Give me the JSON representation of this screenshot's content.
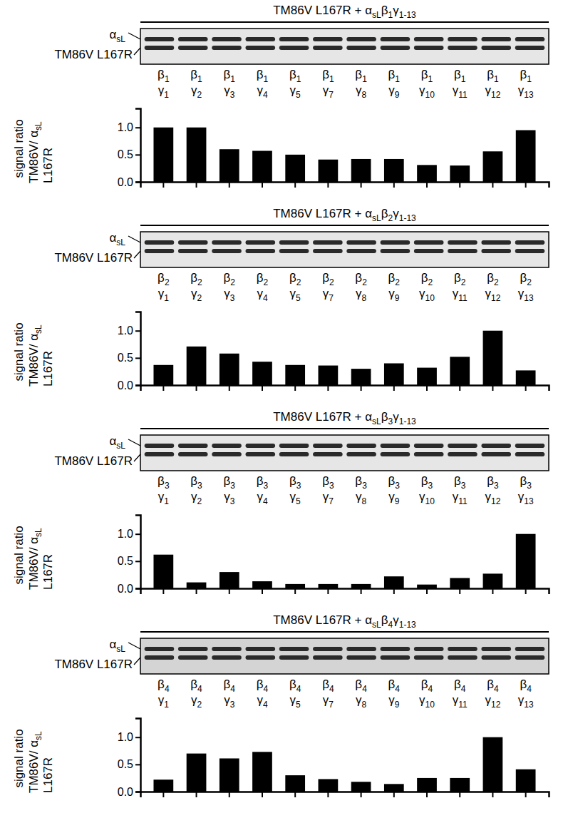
{
  "chart_data": [
    {
      "type": "bar",
      "title": "TM86V L167R + αsLβ1γ1-13",
      "annotations": [
        "αsL",
        "TM86V L167R"
      ],
      "y_label": [
        "signal ratio",
        "TM86V/ αsL",
        "L167R"
      ],
      "categories": [
        "β1 γ1",
        "β1 γ2",
        "β1 γ3",
        "β1 γ4",
        "β1 γ5",
        "β1 γ7",
        "β1 γ8",
        "β1 γ9",
        "β1 γ10",
        "β1 γ11",
        "β1 γ12",
        "β1 γ13"
      ],
      "values": [
        1.0,
        1.0,
        0.6,
        0.57,
        0.5,
        0.41,
        0.42,
        0.42,
        0.31,
        0.3,
        0.56,
        0.95
      ],
      "color": "#000000",
      "ylim": [
        0,
        1.35
      ],
      "yticks": [
        {
          "value": 0,
          "label": "0.0"
        },
        {
          "value": 0.5,
          "label": "0.5"
        },
        {
          "value": 1,
          "label": "1.0"
        }
      ]
    },
    {
      "type": "bar",
      "title": "TM86V L167R + αsLβ2γ1-13",
      "annotations": [
        "αsL",
        "TM86V L167R"
      ],
      "y_label": [
        "signal ratio",
        "TM86V/ αsL",
        "L167R"
      ],
      "categories": [
        "β2 γ1",
        "β2 γ2",
        "β2 γ3",
        "β2 γ4",
        "β2 γ5",
        "β2 γ7",
        "β2 γ8",
        "β2 γ9",
        "β2 γ10",
        "β2 γ11",
        "β2 γ12",
        "β2 γ13"
      ],
      "values": [
        0.37,
        0.71,
        0.58,
        0.43,
        0.37,
        0.36,
        0.3,
        0.4,
        0.32,
        0.52,
        1.0,
        0.27
      ],
      "color": "#000000",
      "ylim": [
        0,
        1.35
      ],
      "yticks": [
        {
          "value": 0,
          "label": "0.0"
        },
        {
          "value": 0.5,
          "label": "0.5"
        },
        {
          "value": 1,
          "label": "1.0"
        }
      ]
    },
    {
      "type": "bar",
      "title": "TM86V L167R + αsLβ3γ1-13",
      "annotations": [
        "αsL",
        "TM86V L167R"
      ],
      "y_label": [
        "signal ratio",
        "TM86V/ αsL",
        "L167R"
      ],
      "categories": [
        "β3 γ1",
        "β3 γ2",
        "β3 γ3",
        "β3 γ4",
        "β3 γ5",
        "β3 γ7",
        "β3 γ8",
        "β3 γ9",
        "β3 γ10",
        "β3 γ11",
        "β3 γ12",
        "β3 γ13"
      ],
      "values": [
        0.62,
        0.11,
        0.3,
        0.13,
        0.08,
        0.08,
        0.08,
        0.22,
        0.07,
        0.19,
        0.27,
        1.0
      ],
      "color": "#000000",
      "ylim": [
        0,
        1.35
      ],
      "yticks": [
        {
          "value": 0,
          "label": "0.0"
        },
        {
          "value": 0.5,
          "label": "0.5"
        },
        {
          "value": 1,
          "label": "1.0"
        }
      ]
    },
    {
      "type": "bar",
      "title": "TM86V L167R + αsLβ4γ1-13",
      "annotations": [
        "αsL",
        "TM86V L167R"
      ],
      "y_label": [
        "signal ratio",
        "TM86V/ αsL",
        "L167R"
      ],
      "categories": [
        "β4 γ1",
        "β4 γ2",
        "β4 γ3",
        "β4 γ4",
        "β4 γ5",
        "β4 γ7",
        "β4 γ8",
        "β4 γ9",
        "β4 γ10",
        "β4 γ11",
        "β4 γ12",
        "β4 γ13"
      ],
      "values": [
        0.22,
        0.7,
        0.61,
        0.73,
        0.3,
        0.23,
        0.18,
        0.14,
        0.25,
        0.25,
        1.0,
        0.41
      ],
      "color": "#000000",
      "ylim": [
        0,
        1.35
      ],
      "yticks": [
        {
          "value": 0,
          "label": "0.0"
        },
        {
          "value": 0.5,
          "label": "0.5"
        },
        {
          "value": 1,
          "label": "1.0"
        }
      ]
    }
  ]
}
